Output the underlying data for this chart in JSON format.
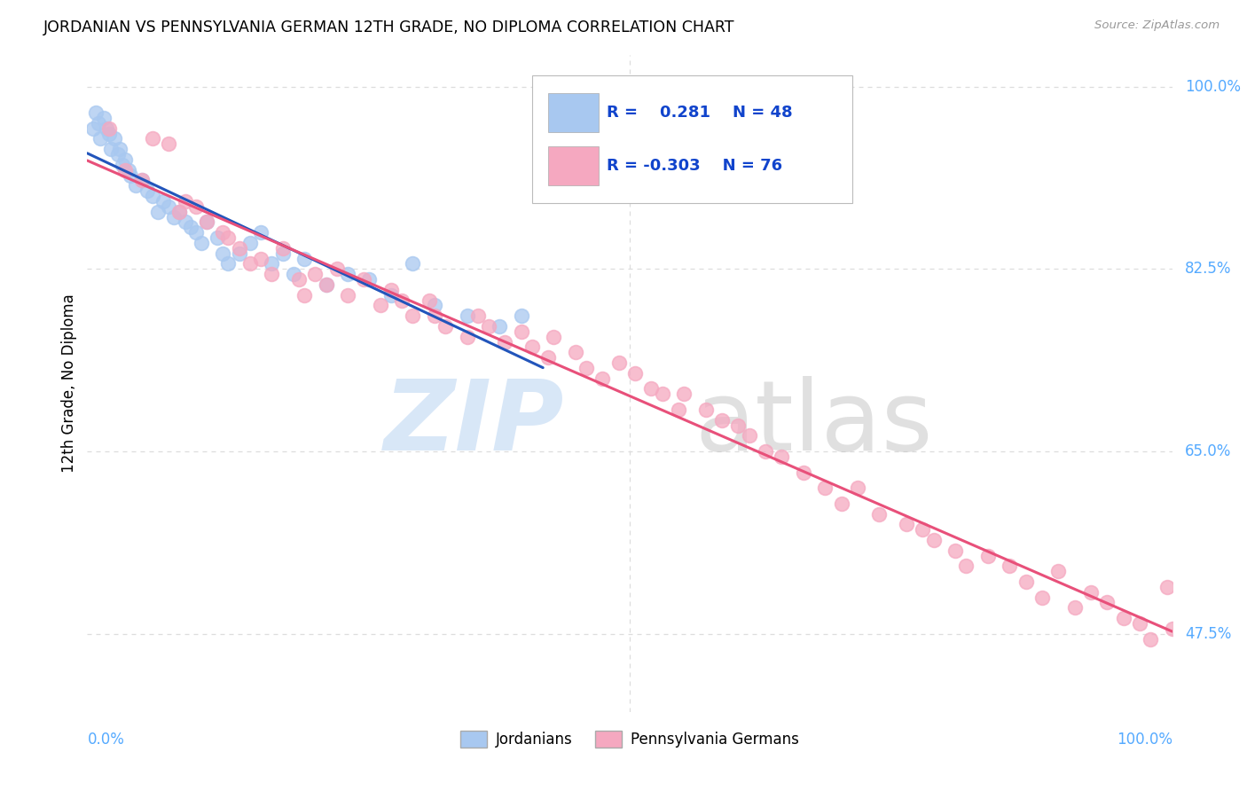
{
  "title": "JORDANIAN VS PENNSYLVANIA GERMAN 12TH GRADE, NO DIPLOMA CORRELATION CHART",
  "source": "Source: ZipAtlas.com",
  "ylabel": "12th Grade, No Diploma",
  "legend_r_jordanian": "0.281",
  "legend_n_jordanian": "48",
  "legend_r_penn": "-0.303",
  "legend_n_penn": "76",
  "jordanian_color": "#a8c8f0",
  "jordanian_edge": "#a8c8f0",
  "penn_color": "#f5a8c0",
  "penn_edge": "#f5a8c0",
  "trend_jordanian_color": "#2255bb",
  "trend_penn_color": "#e8507a",
  "watermark_zip_color": "#c8ddf5",
  "watermark_atlas_color": "#c8c8c8",
  "grid_color": "#dddddd",
  "ytick_color": "#55aaff",
  "xtick_color": "#55aaff",
  "legend_text_color": "#1144cc",
  "x_min": 0,
  "x_max": 100,
  "y_min": 40,
  "y_max": 103,
  "ytick_positions": [
    47.5,
    65.0,
    82.5,
    100.0
  ],
  "ytick_labels": [
    "47.5%",
    "65.0%",
    "82.5%",
    "100.0%"
  ],
  "xtick_left_label": "0.0%",
  "xtick_right_label": "100.0%",
  "bottom_legend_labels": [
    "Jordanians",
    "Pennsylvania Germans"
  ],
  "jord_x": [
    0.5,
    0.8,
    1.0,
    1.2,
    1.5,
    1.8,
    2.0,
    2.2,
    2.5,
    2.8,
    3.0,
    3.2,
    3.5,
    3.8,
    4.0,
    4.5,
    5.0,
    5.5,
    6.0,
    6.5,
    7.0,
    7.5,
    8.0,
    8.5,
    9.0,
    9.5,
    10.0,
    10.5,
    11.0,
    12.0,
    12.5,
    13.0,
    14.0,
    15.0,
    16.0,
    17.0,
    18.0,
    19.0,
    20.0,
    22.0,
    24.0,
    26.0,
    28.0,
    30.0,
    32.0,
    35.0,
    38.0,
    40.0
  ],
  "jord_y": [
    96.0,
    97.5,
    96.5,
    95.0,
    97.0,
    96.0,
    95.5,
    94.0,
    95.0,
    93.5,
    94.0,
    92.5,
    93.0,
    92.0,
    91.5,
    90.5,
    91.0,
    90.0,
    89.5,
    88.0,
    89.0,
    88.5,
    87.5,
    88.0,
    87.0,
    86.5,
    86.0,
    85.0,
    87.0,
    85.5,
    84.0,
    83.0,
    84.0,
    85.0,
    86.0,
    83.0,
    84.0,
    82.0,
    83.5,
    81.0,
    82.0,
    81.5,
    80.0,
    83.0,
    79.0,
    78.0,
    77.0,
    78.0
  ],
  "penn_x": [
    2.0,
    3.5,
    5.0,
    6.0,
    7.5,
    8.5,
    9.0,
    10.0,
    11.0,
    12.5,
    13.0,
    14.0,
    15.0,
    16.0,
    17.0,
    18.0,
    19.5,
    20.0,
    21.0,
    22.0,
    23.0,
    24.0,
    25.5,
    27.0,
    28.0,
    29.0,
    30.0,
    31.5,
    32.0,
    33.0,
    35.0,
    36.0,
    37.0,
    38.5,
    40.0,
    41.0,
    42.5,
    43.0,
    45.0,
    46.0,
    47.5,
    49.0,
    50.5,
    52.0,
    53.0,
    54.5,
    55.0,
    57.0,
    58.5,
    60.0,
    61.0,
    62.5,
    64.0,
    66.0,
    68.0,
    69.5,
    71.0,
    73.0,
    75.5,
    77.0,
    78.0,
    80.0,
    81.0,
    83.0,
    85.0,
    86.5,
    88.0,
    89.5,
    91.0,
    92.5,
    94.0,
    95.5,
    97.0,
    98.0,
    99.5,
    100.0
  ],
  "penn_y": [
    96.0,
    92.0,
    91.0,
    95.0,
    94.5,
    88.0,
    89.0,
    88.5,
    87.0,
    86.0,
    85.5,
    84.5,
    83.0,
    83.5,
    82.0,
    84.5,
    81.5,
    80.0,
    82.0,
    81.0,
    82.5,
    80.0,
    81.5,
    79.0,
    80.5,
    79.5,
    78.0,
    79.5,
    78.0,
    77.0,
    76.0,
    78.0,
    77.0,
    75.5,
    76.5,
    75.0,
    74.0,
    76.0,
    74.5,
    73.0,
    72.0,
    73.5,
    72.5,
    71.0,
    70.5,
    69.0,
    70.5,
    69.0,
    68.0,
    67.5,
    66.5,
    65.0,
    64.5,
    63.0,
    61.5,
    60.0,
    61.5,
    59.0,
    58.0,
    57.5,
    56.5,
    55.5,
    54.0,
    55.0,
    54.0,
    52.5,
    51.0,
    53.5,
    50.0,
    51.5,
    50.5,
    49.0,
    48.5,
    47.0,
    52.0,
    48.0
  ]
}
